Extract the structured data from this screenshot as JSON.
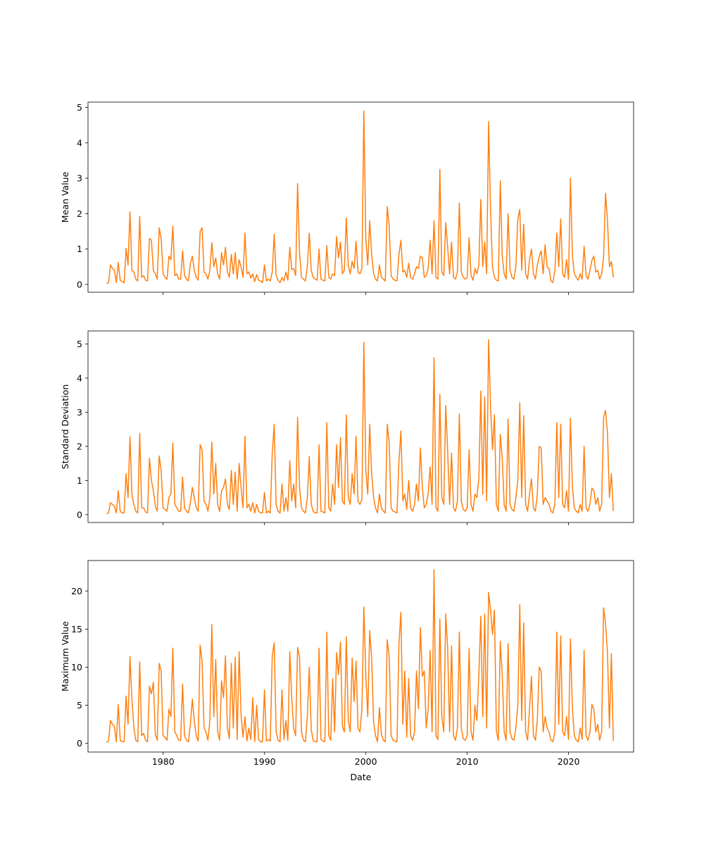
{
  "chart_data": [
    {
      "type": "line",
      "ylabel": "Mean Value",
      "xlabel": "",
      "x_axis_type": "date",
      "x_tick_labels_visible": false,
      "xlim": [
        "1972-08-01",
        "2026-06-01"
      ],
      "xticks": [
        "1980",
        "1990",
        "2000",
        "2010",
        "2020"
      ],
      "ylim": [
        -0.22,
        5.15
      ],
      "yticks": [
        "0",
        "1",
        "2",
        "3",
        "4",
        "5"
      ],
      "grid": false,
      "series_color": "#ff7f0e",
      "x_range": [
        "1974-06-01",
        "2024-06-01"
      ],
      "series": [
        {
          "values": [
            0.03,
            0.05,
            0.55,
            0.45,
            0.4,
            0.05,
            0.62,
            0.12,
            0.08,
            0.05,
            1.02,
            0.55,
            2.05,
            0.4,
            0.35,
            0.15,
            0.1,
            1.92,
            0.2,
            0.25,
            0.12,
            0.1,
            1.3,
            1.25,
            0.4,
            0.3,
            0.15,
            1.6,
            1.3,
            0.3,
            0.2,
            0.15,
            0.8,
            0.7,
            1.65,
            0.25,
            0.3,
            0.15,
            0.15,
            0.95,
            0.25,
            0.15,
            0.1,
            0.6,
            0.8,
            0.4,
            0.2,
            0.12,
            1.5,
            1.6,
            0.35,
            0.3,
            0.15,
            0.4,
            1.18,
            0.5,
            0.75,
            0.3,
            0.15,
            0.9,
            0.55,
            1.05,
            0.35,
            0.2,
            0.85,
            0.3,
            0.9,
            0.15,
            0.7,
            0.5,
            0.2,
            1.45,
            0.3,
            0.35,
            0.18,
            0.3,
            0.08,
            0.28,
            0.12,
            0.1,
            0.05,
            0.55,
            0.1,
            0.15,
            0.1,
            0.35,
            1.42,
            0.25,
            0.12,
            0.05,
            0.2,
            0.1,
            0.35,
            0.12,
            1.05,
            0.42,
            0.45,
            0.25,
            2.85,
            0.9,
            0.2,
            0.15,
            0.1,
            0.5,
            1.45,
            0.4,
            0.2,
            0.15,
            0.12,
            1.0,
            0.15,
            0.12,
            0.1,
            1.1,
            0.2,
            0.15,
            0.3,
            0.25,
            1.35,
            0.75,
            1.2,
            0.3,
            0.4,
            1.88,
            0.55,
            0.3,
            0.65,
            0.45,
            1.22,
            0.35,
            0.3,
            0.45,
            4.9,
            1.3,
            0.55,
            1.8,
            0.85,
            0.3,
            0.15,
            0.1,
            0.55,
            0.2,
            0.15,
            0.1,
            2.2,
            1.65,
            0.25,
            0.15,
            0.12,
            0.1,
            0.85,
            1.25,
            0.35,
            0.4,
            0.2,
            0.6,
            0.2,
            0.15,
            0.3,
            0.5,
            0.45,
            0.8,
            0.75,
            0.2,
            0.25,
            0.45,
            1.25,
            0.3,
            1.8,
            0.2,
            0.15,
            3.25,
            0.35,
            0.25,
            1.75,
            1.05,
            0.3,
            1.2,
            0.2,
            0.15,
            0.35,
            2.3,
            0.35,
            0.2,
            0.15,
            0.2,
            1.32,
            0.25,
            0.12,
            0.45,
            0.3,
            0.55,
            2.4,
            0.5,
            1.2,
            0.3,
            4.6,
            2.1,
            0.5,
            0.2,
            0.12,
            0.1,
            2.93,
            0.8,
            0.3,
            0.15,
            2.0,
            0.4,
            0.2,
            0.15,
            0.5,
            1.85,
            2.12,
            0.4,
            1.7,
            0.3,
            0.15,
            0.7,
            1.0,
            0.3,
            0.15,
            0.55,
            0.8,
            0.95,
            0.3,
            1.12,
            0.5,
            0.45,
            0.1,
            0.05,
            0.4,
            1.45,
            0.5,
            1.85,
            0.3,
            0.2,
            0.7,
            0.15,
            3.0,
            0.8,
            0.3,
            0.2,
            0.12,
            0.3,
            0.15,
            1.08,
            0.25,
            0.15,
            0.4,
            0.68,
            0.8,
            0.35,
            0.4,
            0.15,
            0.3,
            0.75,
            2.58,
            1.8,
            0.5,
            0.65,
            0.2
          ]
        }
      ]
    },
    {
      "type": "line",
      "ylabel": "Standard Deviation",
      "xlabel": "",
      "x_axis_type": "date",
      "x_tick_labels_visible": false,
      "xlim": [
        "1972-08-01",
        "2026-06-01"
      ],
      "xticks": [
        "1980",
        "1990",
        "2000",
        "2010",
        "2020"
      ],
      "ylim": [
        -0.23,
        5.38
      ],
      "yticks": [
        "0",
        "1",
        "2",
        "3",
        "4",
        "5"
      ],
      "grid": false,
      "series_color": "#ff7f0e",
      "x_range": [
        "1974-06-01",
        "2024-06-01"
      ],
      "series": [
        {
          "values": [
            0.02,
            0.05,
            0.35,
            0.3,
            0.25,
            0.05,
            0.7,
            0.1,
            0.05,
            0.05,
            1.2,
            0.5,
            2.28,
            0.6,
            0.3,
            0.1,
            0.05,
            2.38,
            0.2,
            0.2,
            0.08,
            0.05,
            1.65,
            1.0,
            0.7,
            0.25,
            0.1,
            1.72,
            1.3,
            0.2,
            0.15,
            0.1,
            0.5,
            0.6,
            2.1,
            0.3,
            0.2,
            0.1,
            0.1,
            1.1,
            0.2,
            0.1,
            0.05,
            0.35,
            0.8,
            0.5,
            0.2,
            0.1,
            2.05,
            1.9,
            0.4,
            0.3,
            0.1,
            0.5,
            2.13,
            0.6,
            1.5,
            0.3,
            0.1,
            0.7,
            0.8,
            1.05,
            0.3,
            0.15,
            1.3,
            0.3,
            1.25,
            0.1,
            1.5,
            0.8,
            0.2,
            2.3,
            0.2,
            0.3,
            0.1,
            0.35,
            0.05,
            0.3,
            0.1,
            0.05,
            0.05,
            0.65,
            0.05,
            0.1,
            0.05,
            1.8,
            2.65,
            0.3,
            0.1,
            0.05,
            0.9,
            0.1,
            0.5,
            0.1,
            1.58,
            0.4,
            0.9,
            0.2,
            2.85,
            0.8,
            0.2,
            0.1,
            0.05,
            0.5,
            1.7,
            0.3,
            0.1,
            0.05,
            0.05,
            2.05,
            0.1,
            0.08,
            0.05,
            2.7,
            0.2,
            0.1,
            0.9,
            0.3,
            2.05,
            0.8,
            2.25,
            0.4,
            0.3,
            2.92,
            0.5,
            0.3,
            1.2,
            0.6,
            2.3,
            0.4,
            0.3,
            0.45,
            5.05,
            1.3,
            0.6,
            2.65,
            1.2,
            0.5,
            0.2,
            0.05,
            0.6,
            0.2,
            0.1,
            0.05,
            2.65,
            2.1,
            0.2,
            0.1,
            0.08,
            0.05,
            1.55,
            2.45,
            0.4,
            0.6,
            0.15,
            1.0,
            0.2,
            0.1,
            0.3,
            0.9,
            0.4,
            1.95,
            0.8,
            0.2,
            0.3,
            0.6,
            1.4,
            0.3,
            4.6,
            0.2,
            0.1,
            3.52,
            0.5,
            0.3,
            3.2,
            1.85,
            0.3,
            1.8,
            0.2,
            0.1,
            0.4,
            2.95,
            0.4,
            0.15,
            0.1,
            0.2,
            1.9,
            0.3,
            0.1,
            0.6,
            0.5,
            1.05,
            3.62,
            0.6,
            3.45,
            0.4,
            5.12,
            3.2,
            1.9,
            2.92,
            0.3,
            0.1,
            2.35,
            1.65,
            0.3,
            0.1,
            2.8,
            0.3,
            0.15,
            0.1,
            0.5,
            1.0,
            3.28,
            0.5,
            2.9,
            0.3,
            0.1,
            0.6,
            1.05,
            0.2,
            0.1,
            0.6,
            2.0,
            1.95,
            0.3,
            0.5,
            0.4,
            0.3,
            0.1,
            0.05,
            0.3,
            2.7,
            0.5,
            2.65,
            0.3,
            0.2,
            0.7,
            0.1,
            2.82,
            0.8,
            0.2,
            0.1,
            0.05,
            0.3,
            0.1,
            2.0,
            0.2,
            0.1,
            0.3,
            0.78,
            0.7,
            0.3,
            0.5,
            0.1,
            0.3,
            2.85,
            3.05,
            2.4,
            0.5,
            1.2,
            0.1
          ]
        }
      ]
    },
    {
      "type": "line",
      "ylabel": "Maximum Value",
      "xlabel": "Date",
      "x_axis_type": "date",
      "x_tick_labels_visible": true,
      "xlim": [
        "1972-08-01",
        "2026-06-01"
      ],
      "xticks": [
        "1980",
        "1990",
        "2000",
        "2010",
        "2020"
      ],
      "ylim": [
        -1.15,
        24.0
      ],
      "yticks": [
        "0",
        "5",
        "10",
        "15",
        "20"
      ],
      "grid": false,
      "series_color": "#ff7f0e",
      "x_range": [
        "1974-06-01",
        "2024-06-01"
      ],
      "series": [
        {
          "values": [
            0.1,
            0.3,
            3.0,
            2.5,
            2.2,
            0.2,
            5.1,
            0.4,
            0.2,
            0.2,
            6.2,
            2.5,
            11.4,
            5.8,
            2.0,
            0.4,
            0.2,
            10.7,
            1.0,
            1.3,
            0.4,
            0.2,
            7.5,
            6.5,
            8.0,
            1.2,
            0.4,
            10.5,
            9.5,
            1.0,
            0.8,
            0.4,
            4.5,
            3.5,
            12.5,
            1.5,
            1.0,
            0.4,
            0.4,
            7.8,
            1.0,
            0.4,
            0.2,
            2.5,
            5.8,
            3.0,
            1.0,
            0.3,
            12.9,
            10.8,
            2.0,
            1.5,
            0.4,
            3.0,
            15.6,
            3.5,
            11.0,
            1.5,
            0.4,
            8.2,
            6.0,
            11.5,
            2.0,
            0.6,
            10.5,
            2.0,
            11.3,
            0.5,
            12.0,
            3.8,
            0.8,
            3.5,
            0.3,
            2.0,
            0.5,
            6.0,
            0.2,
            5.0,
            0.5,
            0.2,
            0.2,
            7.0,
            0.3,
            0.5,
            0.3,
            11.5,
            13.2,
            1.5,
            0.4,
            0.2,
            7.0,
            0.5,
            3.0,
            0.4,
            12.0,
            5.9,
            2.0,
            1.0,
            12.6,
            11.3,
            1.5,
            0.4,
            0.2,
            3.5,
            10.0,
            1.8,
            0.4,
            0.2,
            0.2,
            12.5,
            0.5,
            0.3,
            0.2,
            14.6,
            1.0,
            0.4,
            8.5,
            1.5,
            11.9,
            9.0,
            13.3,
            2.2,
            1.5,
            14.0,
            3.0,
            1.5,
            11.2,
            5.5,
            10.8,
            2.0,
            1.5,
            4.5,
            17.9,
            9.0,
            3.5,
            14.8,
            11.2,
            2.8,
            1.0,
            0.2,
            4.7,
            1.2,
            0.4,
            0.2,
            13.6,
            11.5,
            1.0,
            0.4,
            0.3,
            0.2,
            13.1,
            17.2,
            2.5,
            9.5,
            0.8,
            8.5,
            1.0,
            0.4,
            1.5,
            9.5,
            4.5,
            15.2,
            8.8,
            9.5,
            2.0,
            4.5,
            12.2,
            1.5,
            22.8,
            1.0,
            0.5,
            16.3,
            3.5,
            1.5,
            17.0,
            12.5,
            1.5,
            12.8,
            1.0,
            0.4,
            2.0,
            14.6,
            2.0,
            0.6,
            0.4,
            1.0,
            12.5,
            1.5,
            0.4,
            5.0,
            3.0,
            9.0,
            16.7,
            3.5,
            17.0,
            2.0,
            19.8,
            17.5,
            14.3,
            17.5,
            1.5,
            0.4,
            13.4,
            9.0,
            1.5,
            0.4,
            13.1,
            1.5,
            0.6,
            0.4,
            2.0,
            5.0,
            18.2,
            3.0,
            15.8,
            1.5,
            0.4,
            4.5,
            8.8,
            1.0,
            0.4,
            3.0,
            10.0,
            9.5,
            1.5,
            3.5,
            2.0,
            1.5,
            0.4,
            0.2,
            1.5,
            14.6,
            2.5,
            14.1,
            1.5,
            1.0,
            3.5,
            0.5,
            13.7,
            4.5,
            1.0,
            0.4,
            0.2,
            2.0,
            0.5,
            12.2,
            1.0,
            0.4,
            1.5,
            5.1,
            4.5,
            1.5,
            2.5,
            0.4,
            1.5,
            17.8,
            15.8,
            11.8,
            2.0,
            11.8,
            0.3
          ]
        }
      ]
    }
  ]
}
